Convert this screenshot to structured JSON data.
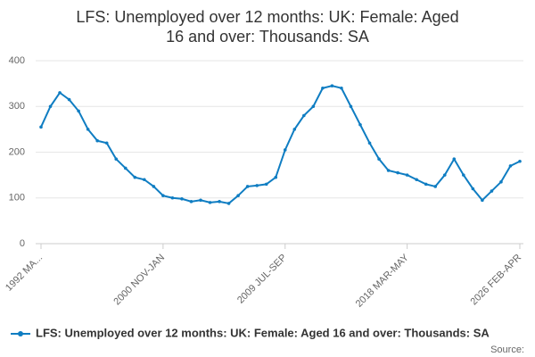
{
  "chart_data": {
    "type": "line",
    "title": "LFS: Unemployed over 12 months: UK: Female: Aged 16 and over: Thousands: SA",
    "source": "Source:",
    "categories": [
      "1992 MA...",
      null,
      null,
      null,
      null,
      null,
      null,
      null,
      null,
      null,
      null,
      null,
      null,
      "2000 NOV-JAN",
      null,
      null,
      null,
      null,
      null,
      null,
      null,
      null,
      null,
      null,
      null,
      null,
      "2009 JUL-SEP",
      null,
      null,
      null,
      null,
      null,
      null,
      null,
      null,
      null,
      null,
      null,
      null,
      "2018 MAR-MAY",
      null,
      null,
      null,
      null,
      null,
      null,
      null,
      null,
      null,
      null,
      null,
      "2026 FEB-APR"
    ],
    "series": [
      {
        "name": "LFS: Unemployed over 12 months: UK: Female: Aged 16 and over: Thousands: SA",
        "color": "#0f7dc2",
        "values": [
          255,
          300,
          330,
          315,
          290,
          250,
          225,
          220,
          185,
          165,
          145,
          140,
          125,
          105,
          100,
          98,
          92,
          95,
          90,
          92,
          88,
          105,
          125,
          127,
          130,
          145,
          205,
          250,
          280,
          300,
          340,
          345,
          340,
          300,
          260,
          220,
          185,
          160,
          155,
          150,
          140,
          130,
          125,
          150,
          185,
          150,
          120,
          95,
          115,
          135,
          170,
          180
        ]
      }
    ],
    "ylim": [
      0,
      400
    ],
    "yticks": [
      0,
      100,
      200,
      300,
      400
    ],
    "grid": true,
    "legend": "bottom"
  }
}
